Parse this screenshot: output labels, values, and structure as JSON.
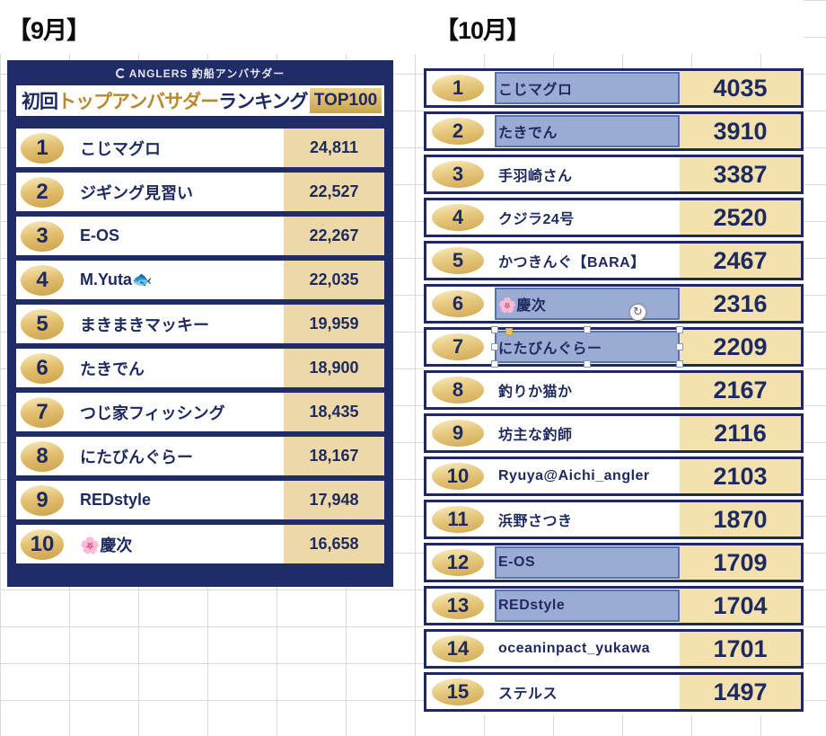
{
  "labels": {
    "september": "【9月】",
    "october": "【10月】"
  },
  "september": {
    "brand": "ANGLERS 釣船アンバサダー",
    "title_parts": {
      "p1": "初回",
      "p2": "トップアンバサダー",
      "p3": "ランキング"
    },
    "badge": "TOP100",
    "rows": [
      {
        "rank": "1",
        "name": "こじマグロ",
        "value": "24,811"
      },
      {
        "rank": "2",
        "name": "ジギング見習い",
        "value": "22,527"
      },
      {
        "rank": "3",
        "name": "E-OS",
        "value": "22,267"
      },
      {
        "rank": "4",
        "name": "M.Yuta🐟",
        "value": "22,035"
      },
      {
        "rank": "5",
        "name": "まきまきマッキー",
        "value": "19,959"
      },
      {
        "rank": "6",
        "name": "たきでん",
        "value": "18,900"
      },
      {
        "rank": "7",
        "name": "つじ家フィッシング",
        "value": "18,435"
      },
      {
        "rank": "8",
        "name": "にたびんぐらー",
        "value": "18,167"
      },
      {
        "rank": "9",
        "name": "REDstyle",
        "value": "17,948"
      },
      {
        "rank": "10",
        "name": "🌸慶次",
        "value": "16,658"
      }
    ]
  },
  "october": {
    "rotate_icon": "↻",
    "highlighted_ranks": [
      1,
      2,
      6,
      7,
      12,
      13
    ],
    "rows": [
      {
        "rank": "1",
        "name": "こじマグロ",
        "value": "4035"
      },
      {
        "rank": "2",
        "name": "たきでん",
        "value": "3910"
      },
      {
        "rank": "3",
        "name": "手羽崎さん",
        "value": "3387"
      },
      {
        "rank": "4",
        "name": "クジラ24号",
        "value": "2520"
      },
      {
        "rank": "5",
        "name": "かつきんぐ【BARA】",
        "value": "2467"
      },
      {
        "rank": "6",
        "name": "🌸慶次",
        "value": "2316"
      },
      {
        "rank": "7",
        "name": "にたびんぐらー",
        "value": "2209"
      },
      {
        "rank": "8",
        "name": "釣りか猫か",
        "value": "2167"
      },
      {
        "rank": "9",
        "name": "坊主な釣師",
        "value": "2116"
      },
      {
        "rank": "10",
        "name": "Ryuya@Aichi_angler",
        "value": "2103"
      },
      {
        "rank": "11",
        "name": "浜野さつき",
        "value": "1870"
      },
      {
        "rank": "12",
        "name": "E-OS",
        "value": "1709"
      },
      {
        "rank": "13",
        "name": "REDstyle",
        "value": "1704"
      },
      {
        "rank": "14",
        "name": "oceaninpact_yukawa",
        "value": "1701"
      },
      {
        "rank": "15",
        "name": "ステルス",
        "value": "1497"
      }
    ]
  },
  "colors": {
    "navy": "#1e2a5f",
    "panel_navy": "#202c68",
    "gold": "#d2a855",
    "tan_left": "#ecd9a7",
    "tan_right": "#f3e2ae",
    "highlight_fill": "#899dcd",
    "highlight_border": "#5a72ac",
    "grid": "#dadada"
  }
}
